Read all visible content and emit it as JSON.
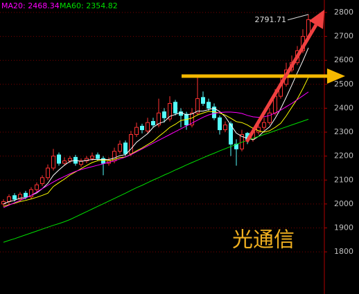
{
  "chart_data": {
    "type": "candlestick",
    "open": [
      2000,
      2010,
      2035,
      2020,
      2045,
      2030,
      2060,
      2085,
      2110,
      2150,
      2205,
      2170,
      2180,
      2195,
      2165,
      2180,
      2190,
      2205,
      2190,
      2170,
      2180,
      2220,
      2255,
      2210,
      2290,
      2325,
      2305,
      2345,
      2330,
      2385,
      2355,
      2425,
      2385,
      2375,
      2330,
      2380,
      2445,
      2425,
      2405,
      2360,
      2310,
      2335,
      2250,
      2230,
      2295,
      2270,
      2300,
      2320,
      2340,
      2380,
      2450,
      2500,
      2560,
      2590,
      2640,
      2700
    ],
    "high": [
      2020,
      2040,
      2045,
      2050,
      2055,
      2070,
      2090,
      2120,
      2165,
      2230,
      2215,
      2195,
      2200,
      2205,
      2190,
      2200,
      2215,
      2215,
      2200,
      2195,
      2235,
      2265,
      2265,
      2305,
      2340,
      2335,
      2360,
      2360,
      2440,
      2400,
      2450,
      2435,
      2400,
      2385,
      2400,
      2530,
      2470,
      2440,
      2420,
      2370,
      2345,
      2345,
      2270,
      2310,
      2300,
      2320,
      2335,
      2360,
      2400,
      2480,
      2530,
      2590,
      2620,
      2660,
      2730,
      2791.71
    ],
    "low": [
      1990,
      2000,
      2010,
      2010,
      2020,
      2020,
      2050,
      2075,
      2100,
      2140,
      2160,
      2160,
      2170,
      2160,
      2155,
      2170,
      2180,
      2180,
      2120,
      2160,
      2170,
      2210,
      2200,
      2200,
      2280,
      2295,
      2295,
      2320,
      2320,
      2340,
      2345,
      2370,
      2320,
      2310,
      2320,
      2370,
      2410,
      2390,
      2350,
      2290,
      2300,
      2200,
      2160,
      2220,
      2250,
      2260,
      2290,
      2310,
      2330,
      2370,
      2440,
      2490,
      2550,
      2580,
      2630,
      2690
    ],
    "close": [
      2010,
      2030,
      2020,
      2040,
      2030,
      2060,
      2080,
      2110,
      2150,
      2200,
      2170,
      2180,
      2190,
      2170,
      2180,
      2190,
      2200,
      2190,
      2170,
      2180,
      2220,
      2250,
      2210,
      2290,
      2320,
      2310,
      2340,
      2330,
      2380,
      2360,
      2420,
      2380,
      2370,
      2330,
      2380,
      2440,
      2420,
      2400,
      2360,
      2310,
      2330,
      2250,
      2230,
      2290,
      2270,
      2300,
      2320,
      2340,
      2380,
      2450,
      2500,
      2560,
      2590,
      2640,
      2700,
      2770
    ],
    "up_color": "#ff3232",
    "down_color": "#54fcfc",
    "series": [
      {
        "color": "#ffffff",
        "values": [
          2000,
          2010,
          2015,
          2025,
          2026,
          2036,
          2046,
          2064,
          2086,
          2120,
          2142,
          2162,
          2178,
          2182,
          2178,
          2182,
          2186,
          2186,
          2186,
          2186,
          2192,
          2202,
          2206,
          2230,
          2258,
          2276,
          2294,
          2320,
          2336,
          2344,
          2366,
          2374,
          2382,
          2372,
          2376,
          2388,
          2388,
          2394,
          2400,
          2386,
          2364,
          2330,
          2296,
          2282,
          2274,
          2268,
          2282,
          2304,
          2322,
          2358,
          2398,
          2446,
          2496,
          2548,
          2598,
          2652
        ]
      },
      {
        "color": "#ffff00",
        "values": [
          1990,
          1997,
          2003,
          2010,
          2015,
          2021,
          2028,
          2036,
          2045,
          2073,
          2089,
          2104,
          2121,
          2134,
          2148,
          2161,
          2173,
          2181,
          2183,
          2181,
          2186,
          2194,
          2196,
          2208,
          2222,
          2234,
          2248,
          2262,
          2282,
          2300,
          2320,
          2333,
          2349,
          2353,
          2359,
          2372,
          2380,
          2387,
          2385,
          2380,
          2371,
          2358,
          2344,
          2340,
          2330,
          2316,
          2306,
          2300,
          2306,
          2320,
          2337,
          2368,
          2404,
          2439,
          2482,
          2529
        ]
      },
      {
        "label": "MA20: 2468.34",
        "color": "#ff00ff",
        "values": [
          1985,
          1995,
          2005,
          2015,
          2025,
          2036,
          2050,
          2064,
          2078,
          2092,
          2104,
          2115,
          2126,
          2136,
          2144,
          2150,
          2156,
          2162,
          2168,
          2174,
          2180,
          2188,
          2196,
          2206,
          2218,
          2230,
          2242,
          2254,
          2266,
          2278,
          2290,
          2302,
          2314,
          2326,
          2338,
          2350,
          2362,
          2372,
          2378,
          2382,
          2384,
          2384,
          2382,
          2378,
          2370,
          2364,
          2362,
          2364,
          2370,
          2380,
          2392,
          2406,
          2420,
          2436,
          2452,
          2468
        ]
      },
      {
        "label": "MA60: 2354.82",
        "color": "#00e000",
        "values": [
          1840,
          1848,
          1855,
          1863,
          1871,
          1879,
          1887,
          1895,
          1903,
          1911,
          1918,
          1926,
          1935,
          1946,
          1957,
          1968,
          1979,
          1990,
          2001,
          2012,
          2023,
          2034,
          2045,
          2057,
          2068,
          2078,
          2089,
          2100,
          2110,
          2121,
          2131,
          2142,
          2152,
          2163,
          2173,
          2183,
          2193,
          2203,
          2212,
          2222,
          2231,
          2240,
          2249,
          2258,
          2266,
          2274,
          2282,
          2290,
          2298,
          2306,
          2314,
          2322,
          2330,
          2338,
          2346,
          2354
        ]
      }
    ],
    "annotation": "光通信",
    "ylim": [
      1624,
      2852
    ],
    "yticks": [
      1800,
      1900,
      2000,
      2100,
      2200,
      2300,
      2400,
      2500,
      2600,
      2700,
      2800
    ],
    "grid": true
  }
}
